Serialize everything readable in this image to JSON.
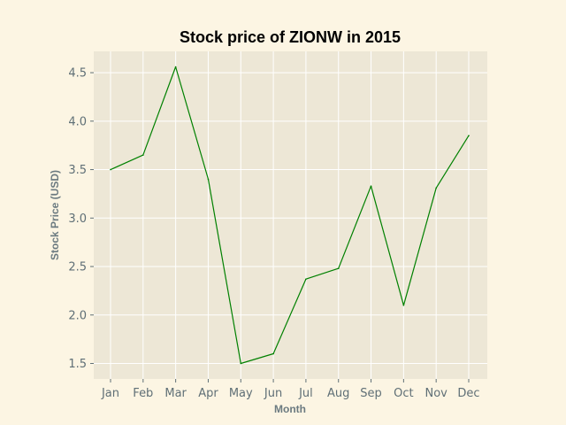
{
  "chart_data": {
    "type": "line",
    "title": "Stock price of ZIONW in 2015",
    "xlabel": "Month",
    "ylabel": "Stock Price (USD)",
    "categories": [
      "Jan",
      "Feb",
      "Mar",
      "Apr",
      "May",
      "Jun",
      "Jul",
      "Aug",
      "Sep",
      "Oct",
      "Nov",
      "Dec"
    ],
    "series": [
      {
        "values": [
          3.5,
          3.65,
          4.56,
          3.4,
          1.5,
          1.6,
          2.37,
          2.48,
          3.33,
          2.1,
          3.31,
          3.85
        ]
      }
    ],
    "ylim": [
      1.34,
      4.72
    ],
    "yticks": [
      "1.5",
      "2.0",
      "2.5",
      "3.0",
      "3.5",
      "4.0",
      "4.5"
    ],
    "grid": true,
    "colors": {
      "line": "#008000",
      "plot_background": "#ede7d6",
      "figure_background": "#fcf5e3",
      "grid": "#ffffff"
    }
  }
}
